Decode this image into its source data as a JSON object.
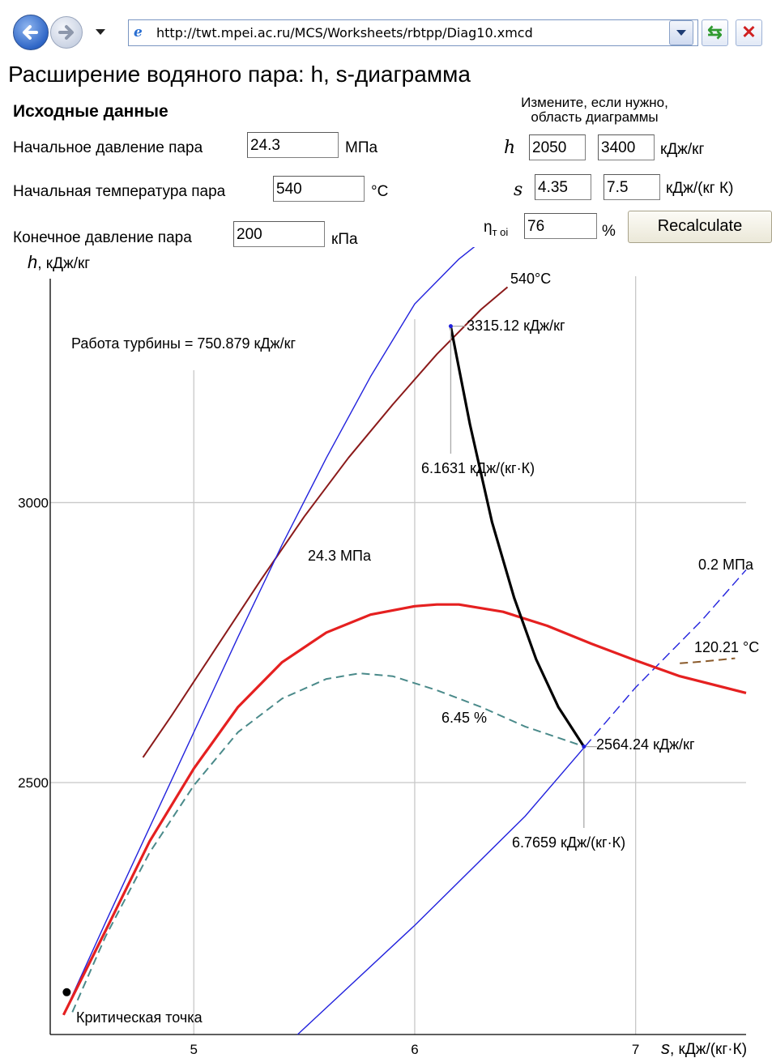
{
  "browser": {
    "url": "http://twt.mpei.ac.ru/MCS/Worksheets/rbtpp/Diag10.xmcd",
    "back_icon": "back-arrow-icon",
    "forward_icon": "forward-arrow-icon",
    "refresh_icon": "refresh-icon",
    "stop_icon": "close-icon"
  },
  "page": {
    "title": "Расширение водяного пара: h, s-диаграмма",
    "initial_heading": "Исходные данные",
    "change_hint_line1": "Измените, если нужно,",
    "change_hint_line2": "область диаграммы"
  },
  "inputs": {
    "p0_label": "Начальное давление пара",
    "p0_value": "24.3",
    "p0_unit": "МПа",
    "t0_label": "Начальная температура пара",
    "t0_value": "540",
    "t0_unit": "°C",
    "pk_label": "Конечное давление пара",
    "pk_value": "200",
    "pk_unit": "кПа",
    "h_label": "h",
    "h_min": "2050",
    "h_max": "3400",
    "h_unit": "кДж/кг",
    "s_label": "s",
    "s_min": "4.35",
    "s_max": "7.5",
    "s_unit": "кДж/(кг К)",
    "eta_label": "η",
    "eta_sub": "т oi",
    "eta_value": "76",
    "eta_unit": "%",
    "recalc_label": "Recalculate"
  },
  "chart_data": {
    "type": "line",
    "ylabel_symbol": "h",
    "ylabel_unit": ", кДж/кг",
    "xlabel_symbol": "s",
    "xlabel_unit": ", кДж/(кг·К)",
    "xlim": [
      4.35,
      7.5
    ],
    "ylim": [
      2050,
      3400
    ],
    "x_ticks": [
      5,
      6,
      7
    ],
    "y_ticks": [
      2500,
      3000
    ],
    "grid": true,
    "annotations": {
      "work": "Работа турбины = 750.879 кДж/кг",
      "t0_iso": "540°C",
      "p0_iso": "24.3 МПа",
      "pk_iso": "0.2 МПа",
      "tk_iso": "120.21 °C",
      "moisture": "6.45 %",
      "critical": "Критическая точка",
      "h0": "3315.12 кДж/кг",
      "s0": "6.1631 кДж/(кг·К)",
      "hk": "2564.24 кДж/кг",
      "sk": "6.7659 кДж/(кг·К)"
    },
    "start_point": {
      "s": 6.1631,
      "h": 3315.12
    },
    "end_point": {
      "s": 6.7659,
      "h": 2564.24
    },
    "critical_point": {
      "s": 4.41,
      "h": 2085
    },
    "series": [
      {
        "key": "iso_540",
        "color": "#8b1a1a",
        "x": [
          4.77,
          4.9,
          5.1,
          5.3,
          5.5,
          5.7,
          5.9,
          6.1,
          6.3,
          6.42
        ],
        "y": [
          2545,
          2620,
          2740,
          2860,
          2975,
          3080,
          3175,
          3265,
          3345,
          3385
        ]
      },
      {
        "key": "iso_24_3",
        "color": "#2222dd",
        "x": [
          4.41,
          4.6,
          4.8,
          5.0,
          5.2,
          5.4,
          5.6,
          5.8,
          6.0,
          6.2,
          6.28
        ],
        "y": [
          2085,
          2250,
          2420,
          2590,
          2760,
          2925,
          3080,
          3225,
          3355,
          3435,
          3460
        ]
      },
      {
        "key": "iso_0_2",
        "color": "#2222dd",
        "x": [
          5.47,
          6.0,
          6.5,
          6.77,
          7.0,
          7.3,
          7.5
        ],
        "y": [
          2050,
          2245,
          2440,
          2564,
          2670,
          2790,
          2880
        ]
      },
      {
        "key": "sat_line",
        "color": "#e52020",
        "x": [
          4.41,
          4.6,
          4.8,
          5.0,
          5.2,
          5.4,
          5.6,
          5.8,
          6.0,
          6.1,
          6.2,
          6.4,
          6.6,
          6.8,
          7.0,
          7.2,
          7.5
        ],
        "y": [
          2085,
          2235,
          2395,
          2525,
          2635,
          2715,
          2768,
          2800,
          2815,
          2818,
          2818,
          2805,
          2780,
          2748,
          2718,
          2690,
          2660
        ]
      },
      {
        "key": "moisture_6_45",
        "color": "#4a8a8a",
        "x": [
          4.45,
          4.6,
          4.8,
          5.0,
          5.2,
          5.4,
          5.6,
          5.75,
          5.9,
          6.1,
          6.3,
          6.5,
          6.77
        ],
        "y": [
          2090,
          2225,
          2375,
          2495,
          2590,
          2650,
          2685,
          2695,
          2690,
          2665,
          2635,
          2600,
          2564
        ]
      },
      {
        "key": "iso_120_21",
        "color": "#8a5a2a",
        "x": [
          7.2,
          7.3,
          7.45
        ],
        "y": [
          2713,
          2716,
          2722
        ]
      },
      {
        "key": "expansion",
        "color": "#000000",
        "x": [
          6.1631,
          6.25,
          6.35,
          6.45,
          6.55,
          6.65,
          6.7659
        ],
        "y": [
          3315.12,
          3140,
          2965,
          2830,
          2720,
          2635,
          2564.24
        ]
      }
    ]
  }
}
